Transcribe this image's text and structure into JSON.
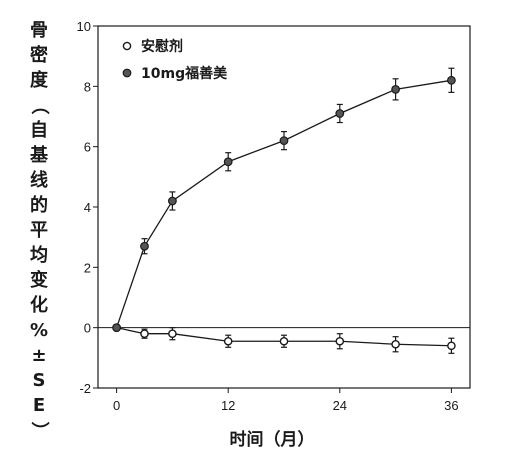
{
  "chart_data": {
    "type": "line",
    "ylabel": "骨密度（自基线的平均变化%±SE）",
    "xlabel": "时间（月）",
    "xlim": [
      -2,
      38
    ],
    "ylim": [
      -2,
      10
    ],
    "x_ticks": [
      0,
      12,
      24,
      36
    ],
    "y_ticks": [
      -2,
      0,
      2,
      4,
      6,
      8,
      10
    ],
    "legend_placement": "top-left",
    "grid": false,
    "series": [
      {
        "name": "安慰剂",
        "marker": "open-circle",
        "color": "#1a1a1a",
        "points": [
          {
            "x": 0,
            "y": 0,
            "err": 0
          },
          {
            "x": 3,
            "y": -0.2,
            "err": 0.15
          },
          {
            "x": 6,
            "y": -0.2,
            "err": 0.2
          },
          {
            "x": 12,
            "y": -0.45,
            "err": 0.2
          },
          {
            "x": 18,
            "y": -0.45,
            "err": 0.2
          },
          {
            "x": 24,
            "y": -0.45,
            "err": 0.25
          },
          {
            "x": 30,
            "y": -0.55,
            "err": 0.25
          },
          {
            "x": 36,
            "y": -0.6,
            "err": 0.25
          }
        ]
      },
      {
        "name": "10mg福善美",
        "marker": "filled-circle",
        "color": "#1a1a1a",
        "points": [
          {
            "x": 0,
            "y": 0,
            "err": 0
          },
          {
            "x": 3,
            "y": 2.7,
            "err": 0.25
          },
          {
            "x": 6,
            "y": 4.2,
            "err": 0.3
          },
          {
            "x": 12,
            "y": 5.5,
            "err": 0.3
          },
          {
            "x": 18,
            "y": 6.2,
            "err": 0.3
          },
          {
            "x": 24,
            "y": 7.1,
            "err": 0.3
          },
          {
            "x": 30,
            "y": 7.9,
            "err": 0.35
          },
          {
            "x": 36,
            "y": 8.2,
            "err": 0.4
          }
        ]
      }
    ]
  }
}
